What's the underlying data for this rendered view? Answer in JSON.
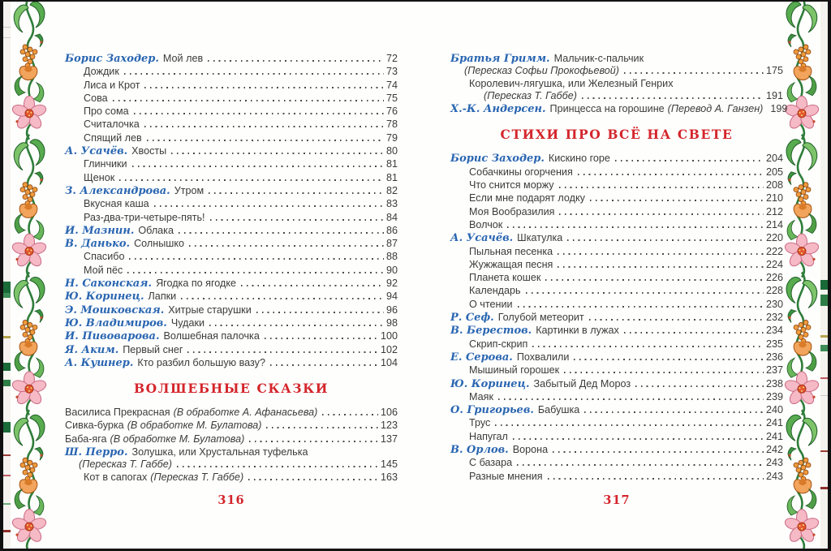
{
  "theme": {
    "accent_red": "#d4252b",
    "author_blue": "#2a66b1",
    "ink": "#3b3b3b",
    "leader_dot": "#4a4a4a",
    "paper": "#fefefd",
    "border_green_dark": "#1e5d26",
    "border_green": "#58ab4e",
    "border_green_light": "#7cc36a",
    "border_pink": "#f6b9c6",
    "border_orange": "#ef9a3c"
  },
  "left_page": {
    "page_number": "316",
    "sections": [
      {
        "heading": null,
        "entries": [
          {
            "author": "Борис Заходер.",
            "title": "Мой лев",
            "page": "72",
            "ind": 0
          },
          {
            "title": "Дождик",
            "page": "73",
            "ind": 1
          },
          {
            "title": "Лиса и Крот",
            "page": "74",
            "ind": 1
          },
          {
            "title": "Сова",
            "page": "75",
            "ind": 1
          },
          {
            "title": "Про сома",
            "page": "76",
            "ind": 1
          },
          {
            "title": "Считалочка",
            "page": "78",
            "ind": 1
          },
          {
            "title": "Спящий лев",
            "page": "79",
            "ind": 1
          },
          {
            "author": "А. Усачёв.",
            "title": "Хвосты",
            "page": "80",
            "ind": 0
          },
          {
            "title": "Глинчики",
            "page": "81",
            "ind": 1
          },
          {
            "title": "Щенок",
            "page": "81",
            "ind": 1
          },
          {
            "author": "З. Александрова.",
            "title": "Утром",
            "page": "82",
            "ind": 0
          },
          {
            "title": "Вкусная каша",
            "page": "83",
            "ind": 1
          },
          {
            "title": "Раз-два-три-четыре-пять!",
            "page": "84",
            "ind": 1
          },
          {
            "author": "И. Мазнин.",
            "title": "Облака",
            "page": "86",
            "ind": 0
          },
          {
            "author": "В. Данько.",
            "title": "Солнышко",
            "page": "87",
            "ind": 0
          },
          {
            "title": "Спасибо",
            "page": "88",
            "ind": 1
          },
          {
            "title": "Мой пёс",
            "page": "90",
            "ind": 1
          },
          {
            "author": "Н. Саконская.",
            "title": "Ягодка по ягодке",
            "page": "92",
            "ind": 0
          },
          {
            "author": "Ю. Коринец.",
            "title": "Лапки",
            "page": "94",
            "ind": 0
          },
          {
            "author": "Э. Мошковская.",
            "title": "Хитрые старушки",
            "page": "96",
            "ind": 0
          },
          {
            "author": "Ю. Владимиров.",
            "title": "Чудаки",
            "page": "98",
            "ind": 0
          },
          {
            "author": "И. Пивоварова.",
            "title": "Волшебная палочка",
            "page": "100",
            "ind": 0
          },
          {
            "author": "Я. Аким.",
            "title": "Первый снег",
            "page": "102",
            "ind": 0
          },
          {
            "author": "А. Кушнер.",
            "title": "Кто разбил большую вазу?",
            "page": "104",
            "ind": 0
          }
        ]
      },
      {
        "heading": "ВОЛШЕБНЫЕ СКАЗКИ",
        "entries": [
          {
            "title": "Василиса Прекрасная",
            "note": "(В обработке А. Афанасьева)",
            "page": "106",
            "ind": 0
          },
          {
            "title": "Сивка-бурка",
            "note": "(В обработке М. Булатова)",
            "page": "123",
            "ind": 0
          },
          {
            "title": "Баба-яга",
            "note": "(В обработке М. Булатова)",
            "page": "137",
            "ind": 0
          },
          {
            "author": "Ш. Перро.",
            "title": "Золушка, или Хрустальная туфелька",
            "ind": 0,
            "cont": {
              "note": "(Пересказ Т. Габбе)",
              "page": "145"
            }
          },
          {
            "title": "Кот в сапогах",
            "note": "(Пересказ Т. Габбе)",
            "page": "163",
            "ind": 1
          }
        ]
      }
    ]
  },
  "right_page": {
    "page_number": "317",
    "sections": [
      {
        "heading": null,
        "entries": [
          {
            "author": "Братья Гримм.",
            "title": "Мальчик-с-пальчик",
            "ind": 0,
            "cont": {
              "note": "(Пересказ Софьи Прокофьевой)",
              "page": "175"
            }
          },
          {
            "title": "Королевич-лягушка, или Железный Генрих",
            "ind": 1,
            "cont": {
              "note": "(Пересказ Т. Габбе)",
              "page": "191"
            }
          },
          {
            "author": "Х.-К. Андерсен.",
            "title": "Принцесса на горошине",
            "note": "(Перевод А. Ганзен)",
            "page": "199",
            "ind": 0
          }
        ]
      },
      {
        "heading": "СТИХИ ПРО ВСЁ НА СВЕТЕ",
        "entries": [
          {
            "author": "Борис Заходер.",
            "title": "Кискино горе",
            "page": "204",
            "ind": 0
          },
          {
            "title": "Собачкины огорчения",
            "page": "205",
            "ind": 1
          },
          {
            "title": "Что снится моржу",
            "page": "208",
            "ind": 1
          },
          {
            "title": "Если мне подарят лодку",
            "page": "210",
            "ind": 1
          },
          {
            "title": "Моя Вообразилия",
            "page": "212",
            "ind": 1
          },
          {
            "title": "Волчок",
            "page": "214",
            "ind": 1
          },
          {
            "author": "А. Усачёв.",
            "title": "Шкатулка",
            "page": "220",
            "ind": 0
          },
          {
            "title": "Пыльная песенка",
            "page": "222",
            "ind": 1
          },
          {
            "title": "Жужжащая песня",
            "page": "224",
            "ind": 1
          },
          {
            "title": "Планета кошек",
            "page": "226",
            "ind": 1
          },
          {
            "title": "Календарь",
            "page": "228",
            "ind": 1
          },
          {
            "title": "О чтении",
            "page": "230",
            "ind": 1
          },
          {
            "author": "Р. Сеф.",
            "title": "Голубой метеорит",
            "page": "232",
            "ind": 0
          },
          {
            "author": "В. Берестов.",
            "title": "Картинки в лужах",
            "page": "234",
            "ind": 0
          },
          {
            "title": "Скрип-скрип",
            "page": "235",
            "ind": 1
          },
          {
            "author": "Е. Серова.",
            "title": "Похвалили",
            "page": "236",
            "ind": 0
          },
          {
            "title": "Мышиный горошек",
            "page": "237",
            "ind": 1
          },
          {
            "author": "Ю. Коринец.",
            "title": "Забытый Дед Мороз",
            "page": "238",
            "ind": 0
          },
          {
            "title": "Маяк",
            "page": "239",
            "ind": 1
          },
          {
            "author": "О. Григорьев.",
            "title": "Бабушка",
            "page": "240",
            "ind": 0
          },
          {
            "title": "Трус",
            "page": "241",
            "ind": 1
          },
          {
            "title": "Напугал",
            "page": "241",
            "ind": 1
          },
          {
            "author": "В. Орлов.",
            "title": "Ворона",
            "page": "242",
            "ind": 0
          },
          {
            "title": "С базара",
            "page": "243",
            "ind": 1
          },
          {
            "title": "Разные мнения",
            "page": "243",
            "ind": 1
          }
        ]
      }
    ]
  }
}
